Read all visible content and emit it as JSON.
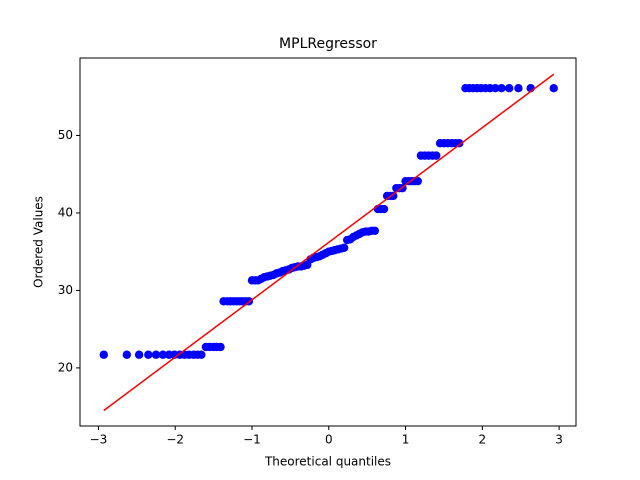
{
  "chart_data": {
    "type": "scatter",
    "title": "MPLRegressor",
    "x_label": "Theoretical quantiles",
    "y_label": "Ordered Values",
    "xlim": [
      -3.24,
      3.22
    ],
    "ylim": [
      12.5,
      60.0
    ],
    "xticks": [
      {
        "value": -3,
        "label": "−3"
      },
      {
        "value": -2,
        "label": "−2"
      },
      {
        "value": -1,
        "label": "−1"
      },
      0,
      1,
      2,
      3
    ],
    "yticks": [
      20,
      30,
      40,
      50
    ],
    "points": {
      "color": "#0000ff",
      "x": [
        -2.93,
        -2.63,
        -2.47,
        -2.35,
        -2.25,
        -2.16,
        -2.08,
        -2.01,
        -1.94,
        -1.88,
        -1.82,
        -1.76,
        -1.71,
        -1.66,
        -1.6,
        -1.55,
        -1.5,
        -1.46,
        -1.41,
        -1.37,
        -1.32,
        -1.28,
        -1.24,
        -1.2,
        -1.16,
        -1.12,
        -1.08,
        -1.04,
        -1.0,
        -0.96,
        -0.92,
        -0.88,
        -0.84,
        -0.8,
        -0.76,
        -0.72,
        -0.68,
        -0.64,
        -0.6,
        -0.56,
        -0.52,
        -0.48,
        -0.44,
        -0.4,
        -0.36,
        -0.32,
        -0.28,
        -0.24,
        -0.2,
        -0.16,
        -0.12,
        -0.08,
        -0.04,
        0.0,
        0.04,
        0.08,
        0.12,
        0.16,
        0.2,
        0.24,
        0.28,
        0.32,
        0.36,
        0.4,
        0.44,
        0.48,
        0.52,
        0.56,
        0.6,
        0.64,
        0.68,
        0.72,
        0.76,
        0.8,
        0.84,
        0.88,
        0.92,
        0.96,
        1.0,
        1.04,
        1.08,
        1.12,
        1.16,
        1.2,
        1.25,
        1.3,
        1.35,
        1.4,
        1.45,
        1.5,
        1.55,
        1.6,
        1.65,
        1.7,
        1.78,
        1.83,
        1.88,
        1.93,
        1.98,
        2.04,
        2.1,
        2.17,
        2.25,
        2.35,
        2.47,
        2.63,
        2.93
      ],
      "y": [
        21.7,
        21.7,
        21.7,
        21.7,
        21.7,
        21.7,
        21.7,
        21.7,
        21.7,
        21.7,
        21.7,
        21.7,
        21.7,
        21.7,
        22.7,
        22.7,
        22.7,
        22.7,
        22.7,
        28.6,
        28.6,
        28.6,
        28.6,
        28.6,
        28.6,
        28.6,
        28.6,
        28.6,
        31.3,
        31.3,
        31.3,
        31.5,
        31.7,
        31.8,
        31.9,
        32.0,
        32.2,
        32.3,
        32.5,
        32.6,
        32.7,
        32.9,
        33.0,
        33.1,
        33.1,
        33.2,
        33.3,
        34.0,
        34.2,
        34.3,
        34.4,
        34.6,
        34.8,
        35.0,
        35.1,
        35.2,
        35.3,
        35.4,
        35.5,
        36.5,
        36.6,
        36.9,
        37.1,
        37.3,
        37.5,
        37.6,
        37.6,
        37.7,
        37.7,
        40.5,
        40.5,
        40.5,
        42.2,
        42.2,
        42.2,
        43.2,
        43.2,
        43.2,
        44.1,
        44.1,
        44.1,
        44.1,
        44.1,
        47.4,
        47.4,
        47.4,
        47.4,
        47.4,
        49.0,
        49.0,
        49.0,
        49.0,
        49.0,
        49.0,
        56.1,
        56.1,
        56.1,
        56.1,
        56.1,
        56.1,
        56.1,
        56.1,
        56.1,
        56.1,
        56.1,
        56.1,
        56.1
      ]
    },
    "fit_line": {
      "color": "#ff0000",
      "x": [
        -2.93,
        2.93
      ],
      "y": [
        14.5,
        57.9
      ]
    }
  }
}
